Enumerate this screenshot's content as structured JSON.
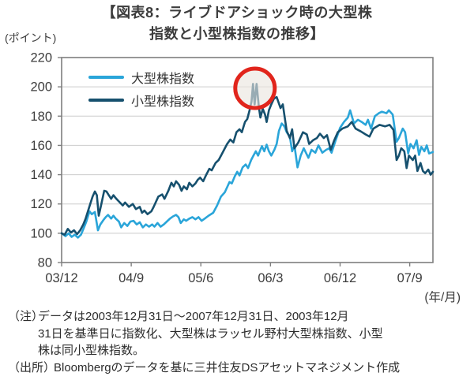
{
  "title": {
    "line1": "【図表8：ライブドアショック時の大型株",
    "line2": "指数と小型株指数の推移】"
  },
  "notes": {
    "note_label": "（注）",
    "note_lines": [
      "データは2003年12月31日～2007年12月31日、2003年12月",
      "31日を基準日に指数化、大型株はラッセル野村大型株指数、小型",
      "株は同小型株指数。"
    ],
    "source_label": "（出所）",
    "source_text": "Bloombergのデータを基に三井住友DSアセットマネジメント作成"
  },
  "chart_data": {
    "type": "line",
    "title": "図表8：ライブドアショック時の大型株指数と小型株指数の推移",
    "ylabel": "(ポイント)",
    "xlabel": "(年/月)",
    "ylim": [
      80,
      220
    ],
    "y_ticks": [
      220,
      200,
      180,
      160,
      140,
      120,
      100,
      80
    ],
    "x_ticks": [
      "03/12",
      "04/9",
      "05/6",
      "06/3",
      "06/12",
      "07/9"
    ],
    "x_tick_months": [
      0,
      9,
      18,
      27,
      36,
      45
    ],
    "x_range_months": [
      0,
      48
    ],
    "grid": true,
    "legend_position": "top-left-inside",
    "annotation": {
      "shape": "circle",
      "ring_color": "#e1251c",
      "fill_color": "rgba(234,229,222,0.62)",
      "center_month": 25.0,
      "center_value": 199,
      "radius_px": 25
    },
    "series": [
      {
        "name": "大型株指数",
        "color": "#2aa5d9",
        "points": [
          [
            0,
            100
          ],
          [
            0.5,
            98
          ],
          [
            0.9,
            100
          ],
          [
            1.3,
            97.5
          ],
          [
            1.7,
            99
          ],
          [
            2.1,
            97
          ],
          [
            2.5,
            99
          ],
          [
            2.9,
            104
          ],
          [
            3.2,
            108
          ],
          [
            3.6,
            115
          ],
          [
            3.9,
            113
          ],
          [
            4.3,
            114.5
          ],
          [
            4.7,
            102
          ],
          [
            5,
            106
          ],
          [
            5.4,
            109
          ],
          [
            5.7,
            111
          ],
          [
            6,
            112.5
          ],
          [
            6.4,
            110
          ],
          [
            6.7,
            112
          ],
          [
            7,
            110
          ],
          [
            7.4,
            108
          ],
          [
            7.7,
            104
          ],
          [
            8.1,
            107
          ],
          [
            8.5,
            105
          ],
          [
            8.9,
            108
          ],
          [
            9.3,
            108.5
          ],
          [
            9.7,
            106
          ],
          [
            10.1,
            107.5
          ],
          [
            10.5,
            104
          ],
          [
            10.9,
            106
          ],
          [
            11.3,
            104.5
          ],
          [
            11.7,
            106
          ],
          [
            12,
            104.5
          ],
          [
            12.4,
            107
          ],
          [
            12.8,
            104.5
          ],
          [
            13.2,
            106
          ],
          [
            13.6,
            108
          ],
          [
            14,
            110
          ],
          [
            14.4,
            111.5
          ],
          [
            14.8,
            112.5
          ],
          [
            15.1,
            111
          ],
          [
            15.4,
            107
          ],
          [
            15.8,
            109.5
          ],
          [
            16.1,
            108.5
          ],
          [
            16.5,
            110
          ],
          [
            16.9,
            111
          ],
          [
            17.3,
            109.5
          ],
          [
            17.7,
            111
          ],
          [
            18.1,
            108.5
          ],
          [
            18.5,
            110
          ],
          [
            19,
            112
          ],
          [
            19.6,
            114
          ],
          [
            20.1,
            119
          ],
          [
            20.6,
            125
          ],
          [
            21.1,
            128
          ],
          [
            21.45,
            132
          ],
          [
            21.7,
            135
          ],
          [
            22,
            134
          ],
          [
            22.4,
            139
          ],
          [
            22.7,
            142
          ],
          [
            23,
            139.5
          ],
          [
            23.4,
            145
          ],
          [
            23.8,
            147
          ],
          [
            24.1,
            144.5
          ],
          [
            24.5,
            150
          ],
          [
            24.8,
            153
          ],
          [
            25.1,
            156
          ],
          [
            25.4,
            153
          ],
          [
            25.7,
            157
          ],
          [
            25.9,
            159.5
          ],
          [
            26.2,
            156
          ],
          [
            26.5,
            160.5
          ],
          [
            26.8,
            156
          ],
          [
            27.1,
            153
          ],
          [
            27.5,
            157
          ],
          [
            27.8,
            161
          ],
          [
            28.1,
            170
          ],
          [
            28.45,
            175
          ],
          [
            28.8,
            173
          ],
          [
            29.1,
            169
          ],
          [
            29.5,
            166
          ],
          [
            29.8,
            156
          ],
          [
            30.1,
            160
          ],
          [
            30.5,
            145
          ],
          [
            30.9,
            153
          ],
          [
            31.3,
            158
          ],
          [
            31.9,
            151.5
          ],
          [
            32.3,
            157
          ],
          [
            32.8,
            155
          ],
          [
            33.2,
            160
          ],
          [
            33.7,
            155
          ],
          [
            34.2,
            157
          ],
          [
            34.6,
            158
          ],
          [
            34.9,
            155
          ],
          [
            35.4,
            163
          ],
          [
            36,
            172
          ],
          [
            36.5,
            176
          ],
          [
            37,
            179
          ],
          [
            37.3,
            184
          ],
          [
            37.8,
            175
          ],
          [
            38.3,
            177.5
          ],
          [
            38.8,
            176
          ],
          [
            39.3,
            174
          ],
          [
            39.6,
            177.5
          ],
          [
            40,
            171.5
          ],
          [
            40.5,
            180
          ],
          [
            41,
            182
          ],
          [
            41.4,
            183
          ],
          [
            42,
            182
          ],
          [
            42.3,
            184
          ],
          [
            42.8,
            181
          ],
          [
            43.3,
            162.5
          ],
          [
            43.6,
            165
          ],
          [
            44.1,
            171.5
          ],
          [
            44.4,
            169
          ],
          [
            44.8,
            154.5
          ],
          [
            45.1,
            161
          ],
          [
            45.5,
            158
          ],
          [
            45.9,
            163.5
          ],
          [
            46.2,
            153.5
          ],
          [
            46.5,
            159
          ],
          [
            46.9,
            156
          ],
          [
            47.2,
            160
          ],
          [
            47.5,
            154.5
          ],
          [
            48,
            155.5
          ]
        ]
      },
      {
        "name": "小型株指数",
        "color": "#16506e",
        "points": [
          [
            0,
            100
          ],
          [
            0.4,
            99
          ],
          [
            0.8,
            103
          ],
          [
            1.2,
            100.5
          ],
          [
            1.6,
            102
          ],
          [
            2,
            99.4
          ],
          [
            2.4,
            102
          ],
          [
            2.8,
            106
          ],
          [
            3.1,
            110
          ],
          [
            3.4,
            115
          ],
          [
            3.7,
            120
          ],
          [
            4,
            125
          ],
          [
            4.3,
            128.5
          ],
          [
            4.55,
            126
          ],
          [
            4.8,
            112
          ],
          [
            5.1,
            119
          ],
          [
            5.5,
            129
          ],
          [
            5.8,
            128.5
          ],
          [
            6.1,
            126
          ],
          [
            6.4,
            123.5
          ],
          [
            6.7,
            126
          ],
          [
            7,
            124
          ],
          [
            7.35,
            122
          ],
          [
            7.9,
            119
          ],
          [
            8.2,
            121
          ],
          [
            8.7,
            118
          ],
          [
            9.2,
            120
          ],
          [
            9.6,
            116.5
          ],
          [
            10.1,
            118
          ],
          [
            10.4,
            114
          ],
          [
            10.7,
            115.5
          ],
          [
            11.1,
            113
          ],
          [
            11.6,
            115
          ],
          [
            11.9,
            118
          ],
          [
            12.5,
            125
          ],
          [
            13,
            126.5
          ],
          [
            13.3,
            123.5
          ],
          [
            13.8,
            129
          ],
          [
            14.2,
            134.5
          ],
          [
            14.5,
            132
          ],
          [
            14.8,
            135.5
          ],
          [
            15.2,
            133
          ],
          [
            15.5,
            129
          ],
          [
            15.8,
            132
          ],
          [
            16.2,
            130
          ],
          [
            16.5,
            134.5
          ],
          [
            16.9,
            132
          ],
          [
            17.3,
            134
          ],
          [
            17.6,
            136.5
          ],
          [
            17.9,
            138
          ],
          [
            18.3,
            135.5
          ],
          [
            18.7,
            140
          ],
          [
            19.1,
            144
          ],
          [
            19.4,
            143
          ],
          [
            19.9,
            148
          ],
          [
            20.3,
            150
          ],
          [
            20.7,
            154
          ],
          [
            21.1,
            158
          ],
          [
            21.4,
            161
          ],
          [
            21.8,
            164
          ],
          [
            22.2,
            162
          ],
          [
            22.6,
            169
          ],
          [
            23,
            171
          ],
          [
            23.3,
            169
          ],
          [
            23.7,
            176
          ],
          [
            24,
            178
          ],
          [
            24.3,
            184
          ],
          [
            24.55,
            190
          ],
          [
            24.75,
            202
          ],
          [
            24.95,
            188
          ],
          [
            25.2,
            202
          ],
          [
            25.5,
            186
          ],
          [
            25.7,
            179
          ],
          [
            26,
            185
          ],
          [
            26.3,
            181
          ],
          [
            26.5,
            176
          ],
          [
            26.8,
            184
          ],
          [
            27.1,
            188
          ],
          [
            27.45,
            192
          ],
          [
            27.8,
            193
          ],
          [
            28.3,
            185.5
          ],
          [
            28.6,
            188
          ],
          [
            29.1,
            170
          ],
          [
            29.5,
            165
          ],
          [
            29.8,
            171
          ],
          [
            30.1,
            158
          ],
          [
            30.6,
            162
          ],
          [
            31.2,
            169
          ],
          [
            31.7,
            167.5
          ],
          [
            32,
            161
          ],
          [
            32.5,
            163.5
          ],
          [
            33,
            165
          ],
          [
            33.4,
            168
          ],
          [
            33.9,
            165
          ],
          [
            34.3,
            167
          ],
          [
            34.8,
            157
          ],
          [
            35.2,
            163
          ],
          [
            35.7,
            169
          ],
          [
            36.3,
            171.5
          ],
          [
            37,
            173
          ],
          [
            37.5,
            176
          ],
          [
            38,
            171.5
          ],
          [
            38.7,
            169.5
          ],
          [
            39.3,
            167.5
          ],
          [
            39.8,
            166
          ],
          [
            40.3,
            171.5
          ],
          [
            41.1,
            174
          ],
          [
            41.8,
            173
          ],
          [
            42.4,
            174
          ],
          [
            42.9,
            170.5
          ],
          [
            43.3,
            150
          ],
          [
            43.6,
            153
          ],
          [
            43.9,
            158
          ],
          [
            44.3,
            156
          ],
          [
            44.6,
            144.5
          ],
          [
            44.9,
            153
          ],
          [
            45.4,
            150
          ],
          [
            45.7,
            153
          ],
          [
            46,
            142.5
          ],
          [
            46.4,
            148
          ],
          [
            46.7,
            142.5
          ],
          [
            47,
            141
          ],
          [
            47.4,
            143.5
          ],
          [
            47.7,
            140
          ],
          [
            48,
            142
          ]
        ]
      }
    ]
  }
}
